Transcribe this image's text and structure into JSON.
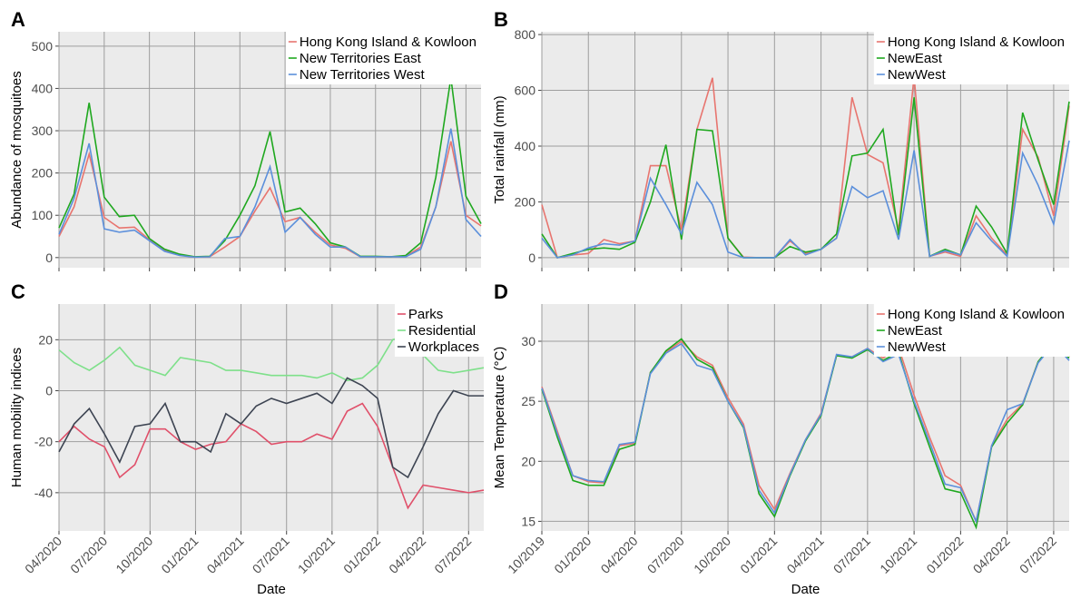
{
  "chart_data": [
    {
      "type": "line",
      "panel": "A",
      "ylabel": "Abundance of mosquitoes",
      "grid": true,
      "legend": "top-right",
      "xtick_labels": false,
      "x": [
        "04/2020",
        "05/2020",
        "06/2020",
        "07/2020",
        "08/2020",
        "09/2020",
        "10/2020",
        "11/2020",
        "12/2020",
        "01/2021",
        "02/2021",
        "03/2021",
        "04/2021",
        "05/2021",
        "06/2021",
        "07/2021",
        "08/2021",
        "09/2021",
        "10/2021",
        "11/2021",
        "12/2021",
        "01/2022",
        "02/2022",
        "03/2022",
        "04/2022",
        "05/2022",
        "06/2022",
        "07/2022",
        "08/2022"
      ],
      "xlim": [
        "04/2020",
        "08/2022"
      ],
      "xticks": [
        "04/2020",
        "07/2020",
        "10/2020",
        "01/2021",
        "04/2021",
        "07/2021",
        "10/2021",
        "01/2022",
        "04/2022",
        "07/2022"
      ],
      "ylim": [
        -24,
        534
      ],
      "yticks": [
        0,
        100,
        200,
        300,
        400,
        500
      ],
      "series": [
        {
          "name": "Hong Kong Island & Kowloon",
          "color": "#e8756f",
          "values": [
            50,
            120,
            245,
            95,
            70,
            72,
            42,
            18,
            6,
            1,
            2,
            25,
            50,
            110,
            165,
            85,
            95,
            60,
            30,
            22,
            2,
            2,
            2,
            3,
            25,
            120,
            275,
            100,
            75
          ]
        },
        {
          "name": "New Territories East",
          "color": "#1fa81f",
          "values": [
            70,
            150,
            366,
            143,
            97,
            100,
            45,
            20,
            8,
            2,
            3,
            40,
            100,
            170,
            298,
            108,
            117,
            80,
            35,
            25,
            3,
            3,
            2,
            5,
            35,
            190,
            425,
            145,
            80
          ]
        },
        {
          "name": "New Territories West",
          "color": "#5b8fdb",
          "values": [
            55,
            140,
            270,
            68,
            60,
            65,
            40,
            15,
            5,
            1,
            2,
            45,
            50,
            120,
            215,
            60,
            95,
            55,
            25,
            25,
            2,
            2,
            2,
            2,
            20,
            120,
            305,
            90,
            50
          ]
        }
      ]
    },
    {
      "type": "line",
      "panel": "B",
      "ylabel": "Total rainfall (mm)",
      "grid": true,
      "legend": "top-right",
      "xtick_labels": false,
      "x": [
        "10/2019",
        "11/2019",
        "12/2019",
        "01/2020",
        "02/2020",
        "03/2020",
        "04/2020",
        "05/2020",
        "06/2020",
        "07/2020",
        "08/2020",
        "09/2020",
        "10/2020",
        "11/2020",
        "12/2020",
        "01/2021",
        "02/2021",
        "03/2021",
        "04/2021",
        "05/2021",
        "06/2021",
        "07/2021",
        "08/2021",
        "09/2021",
        "10/2021",
        "11/2021",
        "12/2021",
        "01/2022",
        "02/2022",
        "03/2022",
        "04/2022",
        "05/2022",
        "06/2022",
        "07/2022",
        "08/2022"
      ],
      "xlim": [
        "10/2019",
        "08/2022"
      ],
      "xticks": [
        "10/2019",
        "01/2020",
        "04/2020",
        "07/2020",
        "10/2020",
        "01/2021",
        "04/2021",
        "07/2021",
        "10/2021",
        "01/2022",
        "04/2022",
        "07/2022"
      ],
      "ylim": [
        -36,
        810
      ],
      "yticks": [
        0,
        200,
        400,
        600,
        800
      ],
      "series": [
        {
          "name": "Hong Kong Island & Kowloon",
          "color": "#e8756f",
          "values": [
            190,
            0,
            10,
            15,
            65,
            50,
            60,
            330,
            330,
            100,
            460,
            645,
            70,
            2,
            0,
            0,
            60,
            15,
            30,
            70,
            575,
            370,
            340,
            100,
            650,
            5,
            20,
            5,
            150,
            70,
            10,
            460,
            360,
            150,
            545
          ]
        },
        {
          "name": "NewEast",
          "color": "#1fa81f",
          "values": [
            85,
            0,
            15,
            30,
            35,
            30,
            55,
            200,
            405,
            65,
            460,
            455,
            70,
            0,
            0,
            0,
            40,
            20,
            30,
            85,
            365,
            375,
            460,
            80,
            575,
            5,
            30,
            10,
            185,
            110,
            15,
            520,
            350,
            190,
            560
          ]
        },
        {
          "name": "NewWest",
          "color": "#5b8fdb",
          "values": [
            70,
            0,
            10,
            35,
            50,
            45,
            60,
            285,
            190,
            85,
            270,
            190,
            20,
            0,
            0,
            0,
            65,
            10,
            30,
            70,
            255,
            215,
            240,
            65,
            385,
            5,
            25,
            10,
            125,
            60,
            5,
            375,
            260,
            120,
            420
          ]
        }
      ]
    },
    {
      "type": "line",
      "panel": "C",
      "ylabel": "Human mobility indices",
      "xlabel": "Date",
      "grid": true,
      "legend": "top-right",
      "xtick_labels": true,
      "x": [
        "04/2020",
        "05/2020",
        "06/2020",
        "07/2020",
        "08/2020",
        "09/2020",
        "10/2020",
        "11/2020",
        "12/2020",
        "01/2021",
        "02/2021",
        "03/2021",
        "04/2021",
        "05/2021",
        "06/2021",
        "07/2021",
        "08/2021",
        "09/2021",
        "10/2021",
        "11/2021",
        "12/2021",
        "01/2022",
        "02/2022",
        "03/2022",
        "04/2022",
        "05/2022",
        "06/2022",
        "07/2022",
        "08/2022"
      ],
      "xlim": [
        "04/2020",
        "08/2022"
      ],
      "xticks": [
        "04/2020",
        "07/2020",
        "10/2020",
        "01/2021",
        "04/2021",
        "07/2021",
        "10/2021",
        "01/2022",
        "04/2022",
        "07/2022"
      ],
      "ylim": [
        -55,
        34
      ],
      "yticks": [
        -40,
        -20,
        0,
        20
      ],
      "series": [
        {
          "name": "Parks",
          "color": "#e0506a",
          "values": [
            -20,
            -14,
            -19,
            -22,
            -34,
            -29,
            -15,
            -15,
            -20,
            -23,
            -21,
            -20,
            -13,
            -16,
            -21,
            -20,
            -20,
            -17,
            -19,
            -8,
            -5,
            -14,
            -30,
            -46,
            -37,
            -38,
            -39,
            -40,
            -39
          ]
        },
        {
          "name": "Residential",
          "color": "#7ee08a",
          "values": [
            16,
            11,
            8,
            12,
            17,
            10,
            8,
            6,
            13,
            12,
            11,
            8,
            8,
            7,
            6,
            6,
            6,
            5,
            7,
            4,
            5,
            10,
            20,
            22,
            14,
            8,
            7,
            8,
            9
          ]
        },
        {
          "name": "Workplaces",
          "color": "#3d4452",
          "values": [
            -24,
            -13,
            -7,
            -17,
            -28,
            -14,
            -13,
            -5,
            -20,
            -20,
            -24,
            -9,
            -13,
            -6,
            -3,
            -5,
            -3,
            -1,
            -5,
            5,
            2,
            -3,
            -30,
            -34,
            -22,
            -9,
            0,
            -2,
            -2
          ]
        }
      ]
    },
    {
      "type": "line",
      "panel": "D",
      "ylabel": "Mean Temperature (°C)",
      "xlabel": "Date",
      "grid": true,
      "legend": "top-right",
      "xtick_labels": true,
      "x": [
        "10/2019",
        "11/2019",
        "12/2019",
        "01/2020",
        "02/2020",
        "03/2020",
        "04/2020",
        "05/2020",
        "06/2020",
        "07/2020",
        "08/2020",
        "09/2020",
        "10/2020",
        "11/2020",
        "12/2020",
        "01/2021",
        "02/2021",
        "03/2021",
        "04/2021",
        "05/2021",
        "06/2021",
        "07/2021",
        "08/2021",
        "09/2021",
        "10/2021",
        "11/2021",
        "12/2021",
        "01/2022",
        "02/2022",
        "03/2022",
        "04/2022",
        "05/2022",
        "06/2022",
        "07/2022",
        "08/2022"
      ],
      "xlim": [
        "10/2019",
        "08/2022"
      ],
      "xticks": [
        "10/2019",
        "01/2020",
        "04/2020",
        "07/2020",
        "10/2020",
        "01/2021",
        "04/2021",
        "07/2021",
        "10/2021",
        "01/2022",
        "04/2022",
        "07/2022"
      ],
      "ylim": [
        14.2,
        33.1
      ],
      "yticks": [
        15,
        20,
        25,
        30
      ],
      "series": [
        {
          "name": "Hong Kong Island & Kowloon",
          "color": "#e8756f",
          "values": [
            26.2,
            22.5,
            18.8,
            18.3,
            18.2,
            21.3,
            21.5,
            27.4,
            29.1,
            30.0,
            28.7,
            28.0,
            25.3,
            23.1,
            18.0,
            16.0,
            19.0,
            21.8,
            24.0,
            28.8,
            28.7,
            29.4,
            28.6,
            29.5,
            25.5,
            22.0,
            18.8,
            18.0,
            15.0,
            21.3,
            23.5,
            24.8,
            28.3,
            29.9,
            28.7
          ]
        },
        {
          "name": "NewEast",
          "color": "#1fa81f",
          "values": [
            26.0,
            22.0,
            18.4,
            18.0,
            18.0,
            21.0,
            21.4,
            27.4,
            29.2,
            30.2,
            28.5,
            27.8,
            25.0,
            22.8,
            17.3,
            15.4,
            18.8,
            21.7,
            23.8,
            28.8,
            28.6,
            29.3,
            28.4,
            29.1,
            24.8,
            21.2,
            17.7,
            17.4,
            14.5,
            21.2,
            23.2,
            24.7,
            28.3,
            29.9,
            28.6
          ]
        },
        {
          "name": "NewWest",
          "color": "#5b8fdb",
          "values": [
            26.1,
            22.3,
            18.8,
            18.4,
            18.3,
            21.4,
            21.6,
            27.3,
            29.0,
            29.8,
            28.0,
            27.6,
            25.0,
            22.9,
            17.6,
            15.7,
            18.9,
            21.8,
            23.9,
            28.9,
            28.7,
            29.4,
            28.3,
            28.9,
            25.0,
            21.6,
            18.1,
            17.8,
            15.0,
            21.3,
            24.3,
            24.8,
            28.2,
            29.8,
            28.4
          ]
        }
      ]
    }
  ]
}
